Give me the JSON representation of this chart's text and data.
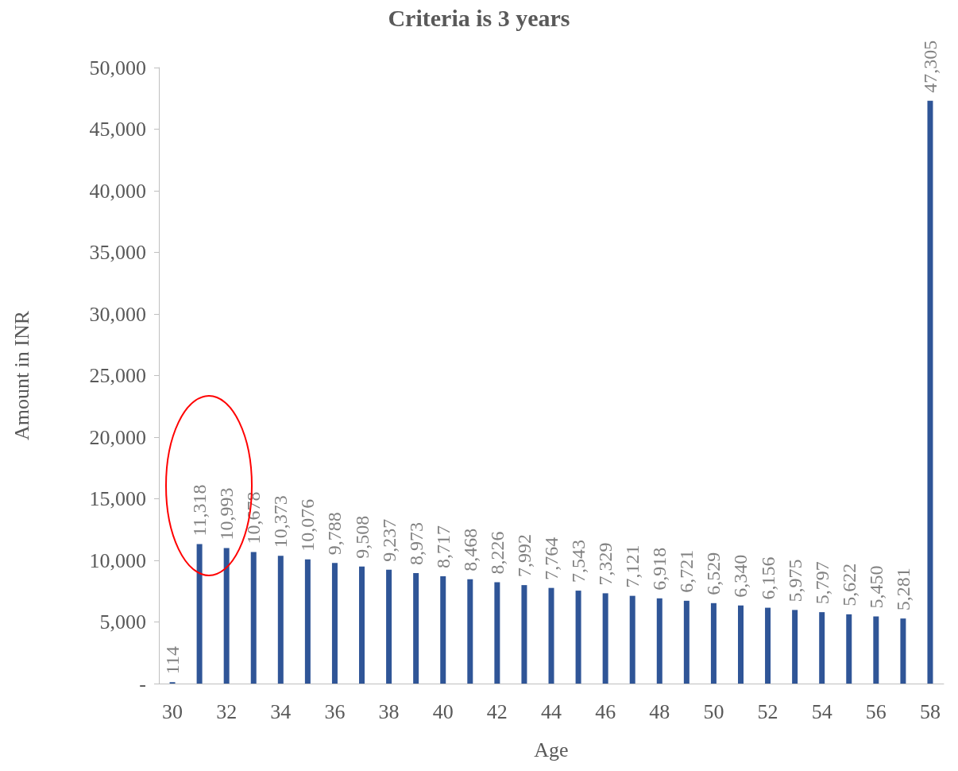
{
  "chart_data": {
    "type": "bar",
    "title": "Criteria is 3 years",
    "xlabel": "Age",
    "ylabel": "Amount in INR",
    "categories": [
      "30",
      null,
      "32",
      null,
      "34",
      null,
      "36",
      null,
      "38",
      null,
      "40",
      null,
      "42",
      null,
      "44",
      null,
      "46",
      null,
      "48",
      null,
      "50",
      null,
      "52",
      null,
      "54",
      null,
      "56",
      null,
      "58"
    ],
    "values": [
      114,
      11318,
      10993,
      10678,
      10373,
      10076,
      9788,
      9508,
      9237,
      8973,
      8717,
      8468,
      8226,
      7992,
      7764,
      7543,
      7329,
      7121,
      6918,
      6721,
      6529,
      6340,
      6156,
      5975,
      5797,
      5622,
      5450,
      5281,
      47305
    ],
    "color": "#2f5597",
    "ylim": [
      0,
      50000
    ],
    "yticks": [
      {
        "value": 0,
        "label": "-"
      },
      {
        "value": 5000,
        "label": "5,000"
      },
      {
        "value": 10000,
        "label": "10,000"
      },
      {
        "value": 15000,
        "label": "15,000"
      },
      {
        "value": 20000,
        "label": "20,000"
      },
      {
        "value": 25000,
        "label": "25,000"
      },
      {
        "value": 30000,
        "label": "30,000"
      },
      {
        "value": 35000,
        "label": "35,000"
      },
      {
        "value": 40000,
        "label": "40,000"
      },
      {
        "value": 45000,
        "label": "45,000"
      },
      {
        "value": 50000,
        "label": "50,000"
      }
    ],
    "value_labels": [
      "114",
      "11,318",
      "10,993",
      "10,678",
      "10,373",
      "10,076",
      "9,788",
      "9,508",
      "9,237",
      "8,973",
      "8,717",
      "8,468",
      "8,226",
      "7,992",
      "7,764",
      "7,543",
      "7,329",
      "7,121",
      "6,918",
      "6,721",
      "6,529",
      "6,340",
      "6,156",
      "5,975",
      "5,797",
      "5,622",
      "5,450",
      "5,281",
      "47,305"
    ],
    "grid": false
  }
}
